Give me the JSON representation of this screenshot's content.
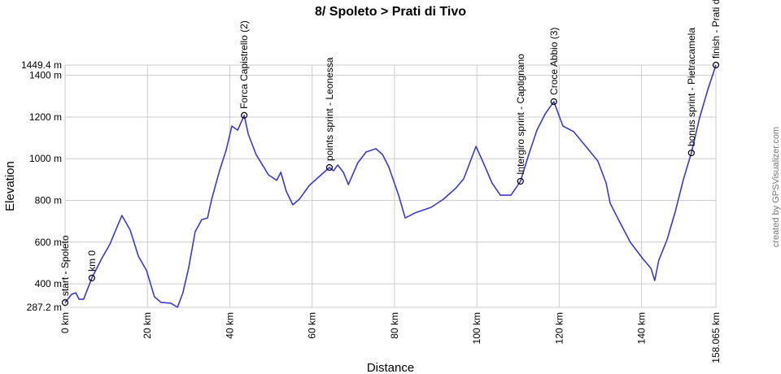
{
  "chart_data": {
    "type": "line",
    "title": "8/ Spoleto > Prati di Tivo",
    "xlabel": "Distance",
    "ylabel": "Elevation",
    "credit": "created by GPSVisualizer.com",
    "color": "#3a3ac8",
    "x": [
      0,
      1.6,
      2.6,
      3.4,
      4.5,
      6.5,
      8.9,
      10.9,
      13.8,
      15.8,
      17.8,
      19.8,
      21.7,
      23.3,
      25.7,
      27.3,
      28.6,
      30.0,
      31.6,
      33.2,
      34.6,
      35.6,
      37.5,
      39.1,
      40.5,
      41.9,
      43.5,
      44.5,
      46.4,
      49.4,
      51.4,
      52.4,
      53.7,
      55.3,
      56.9,
      59.3,
      62.2,
      64.2,
      65.2,
      66.2,
      67.6,
      68.8,
      71.1,
      73.1,
      75.5,
      77.1,
      78.6,
      81.0,
      82.6,
      85.0,
      88.9,
      91.9,
      94.8,
      96.8,
      99.8,
      101.4,
      103.7,
      105.7,
      108.3,
      110.6,
      112.6,
      114.6,
      116.6,
      118.7,
      120.9,
      123.5,
      126.5,
      129.4,
      131.4,
      132.4,
      134.4,
      137.3,
      140.3,
      142.3,
      143.2,
      144.2,
      146.2,
      148.2,
      150.2,
      152.1,
      154.1,
      156.1,
      158.065
    ],
    "values": [
      310,
      350,
      357,
      326,
      326,
      428,
      521,
      591,
      728,
      658,
      533,
      463,
      338,
      311,
      307,
      287.2,
      357,
      474,
      650,
      708,
      716,
      806,
      942,
      1040,
      1157,
      1137,
      1208,
      1118,
      1020,
      923,
      896,
      935,
      845,
      779,
      806,
      872,
      923,
      958,
      942,
      970,
      935,
      876,
      981,
      1032,
      1048,
      1020,
      962,
      825,
      716,
      740,
      767,
      806,
      857,
      903,
      1059,
      989,
      884,
      825,
      825,
      892,
      1020,
      1137,
      1215,
      1274,
      1157,
      1130,
      1059,
      989,
      884,
      786,
      708,
      599,
      521,
      474,
      416,
      513,
      611,
      747,
      903,
      1028,
      1196,
      1332,
      1449.4
    ],
    "xlim": [
      0,
      158.065
    ],
    "ylim": [
      287.2,
      1449.4
    ],
    "xticks": [
      {
        "value": 0,
        "label": "0 km"
      },
      {
        "value": 20,
        "label": "20 km"
      },
      {
        "value": 40,
        "label": "40 km"
      },
      {
        "value": 60,
        "label": "60 km"
      },
      {
        "value": 80,
        "label": "80 km"
      },
      {
        "value": 100,
        "label": "100 km"
      },
      {
        "value": 120,
        "label": "120 km"
      },
      {
        "value": 140,
        "label": "140 km"
      },
      {
        "value": 158.065,
        "label": "158.065 km"
      }
    ],
    "yticks": [
      {
        "value": 287.2,
        "label": "287.2 m"
      },
      {
        "value": 400,
        "label": "400 m"
      },
      {
        "value": 600,
        "label": "600 m"
      },
      {
        "value": 800,
        "label": "800 m"
      },
      {
        "value": 1000,
        "label": "1000 m"
      },
      {
        "value": 1200,
        "label": "1200 m"
      },
      {
        "value": 1400,
        "label": "1400 m"
      },
      {
        "value": 1449.4,
        "label": "1449.4 m"
      }
    ],
    "grid": true,
    "annotations": [
      {
        "label": "start - Spoleto",
        "x": 0,
        "y": 310
      },
      {
        "label": "km 0",
        "x": 6.5,
        "y": 428
      },
      {
        "label": "Forca Capistrello (2)",
        "x": 43.5,
        "y": 1208
      },
      {
        "label": "points sprint - Leonessa",
        "x": 64.2,
        "y": 958
      },
      {
        "label": "Intergiro sprint - Captignano",
        "x": 110.6,
        "y": 892
      },
      {
        "label": "Croce Abbio (3)",
        "x": 118.7,
        "y": 1274
      },
      {
        "label": "bonus sprint - Pietracamela",
        "x": 152.1,
        "y": 1028
      },
      {
        "label": "finish - Prati di Tivo",
        "x": 158.065,
        "y": 1449.4
      }
    ]
  }
}
